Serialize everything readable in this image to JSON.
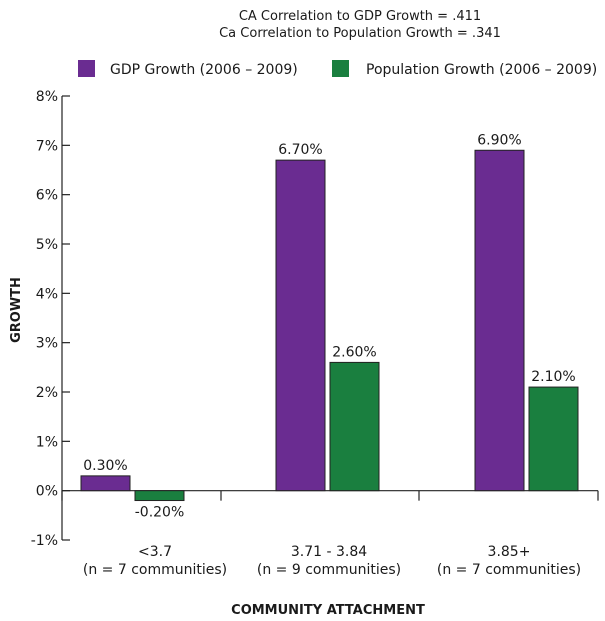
{
  "chart_data": {
    "type": "bar",
    "subtitle_lines": [
      "CA Correlation to GDP Growth = .411",
      "Ca Correlation to Population Growth = .341"
    ],
    "categories": [
      [
        "<3.7",
        "(n = 7 communities)"
      ],
      [
        "3.71 - 3.84",
        "(n = 9 communities)"
      ],
      [
        "3.85+",
        "(n = 7 communities)"
      ]
    ],
    "series": [
      {
        "name": "GDP Growth (2006 – 2009)",
        "color": "#6a2c91",
        "values": [
          0.3,
          6.7,
          6.9
        ],
        "labels": [
          "0.30%",
          "6.70%",
          "6.90%"
        ]
      },
      {
        "name": "Population Growth (2006 – 2009)",
        "color": "#1a7f3f",
        "values": [
          -0.2,
          2.6,
          2.1
        ],
        "labels": [
          "-0.20%",
          "2.60%",
          "2.10%"
        ]
      }
    ],
    "ylim": [
      -1,
      8
    ],
    "yticks": [
      -1,
      0,
      1,
      2,
      3,
      4,
      5,
      6,
      7,
      8
    ],
    "ytick_labels": [
      "-1%",
      "0%",
      "1%",
      "2%",
      "3%",
      "4%",
      "5%",
      "6%",
      "7%",
      "8%"
    ],
    "ylabel": "GROWTH",
    "xlabel": "COMMUNITY ATTACHMENT",
    "legend_position": "top",
    "grid": false
  }
}
